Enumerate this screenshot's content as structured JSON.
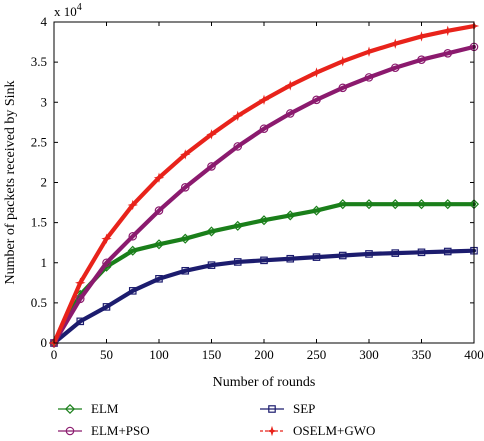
{
  "chart_data": {
    "type": "line",
    "title": "",
    "xlabel": "Number of rounds",
    "ylabel": "Number of packets received by Sink",
    "y_multiplier": "x 10",
    "y_multiplier_exponent": "4",
    "xlim": [
      0,
      400
    ],
    "ylim": [
      0,
      40000
    ],
    "x_ticks": [
      0,
      50,
      100,
      150,
      200,
      250,
      300,
      350,
      400
    ],
    "x_tick_labels": [
      "0",
      "50",
      "100",
      "150",
      "200",
      "250",
      "300",
      "350",
      "400"
    ],
    "y_ticks": [
      0,
      5000,
      10000,
      15000,
      20000,
      25000,
      30000,
      35000,
      40000
    ],
    "y_tick_labels": [
      "0",
      "0.5",
      "1",
      "1.5",
      "2",
      "2.5",
      "3",
      "3.5",
      "4"
    ],
    "grid": false,
    "legend_position": "below",
    "x": [
      0,
      25,
      50,
      75,
      100,
      125,
      150,
      175,
      200,
      225,
      250,
      275,
      300,
      325,
      350,
      375,
      400
    ],
    "series": [
      {
        "name": "ELM",
        "color": "#1a7f1a",
        "marker": "diamond",
        "values": [
          0,
          6000,
          9500,
          11500,
          12300,
          13000,
          13900,
          14600,
          15300,
          15900,
          16500,
          17300,
          17300,
          17300,
          17300,
          17300,
          17300
        ]
      },
      {
        "name": "SEP",
        "color": "#1c1c6e",
        "marker": "square",
        "values": [
          0,
          2700,
          4500,
          6500,
          8000,
          9000,
          9700,
          10100,
          10300,
          10500,
          10700,
          10900,
          11100,
          11200,
          11300,
          11400,
          11500
        ]
      },
      {
        "name": "ELM+PSO",
        "color": "#8b1a6e",
        "marker": "circle",
        "values": [
          0,
          5500,
          10000,
          13300,
          16500,
          19400,
          22000,
          24500,
          26700,
          28600,
          30300,
          31800,
          33100,
          34300,
          35300,
          36100,
          36900
        ]
      },
      {
        "name": "OSELM+GWO",
        "color": "#e8231b",
        "marker": "star",
        "values": [
          0,
          7500,
          13000,
          17200,
          20600,
          23500,
          26000,
          28300,
          30300,
          32100,
          33700,
          35100,
          36300,
          37300,
          38200,
          38900,
          39500
        ]
      }
    ]
  }
}
